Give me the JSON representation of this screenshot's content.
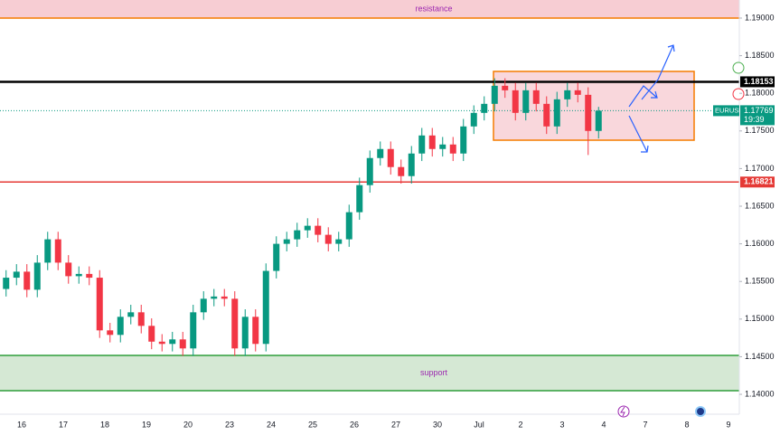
{
  "chart_data": {
    "type": "candlestick",
    "symbol": "EURUSD",
    "up_color": "#089981",
    "down_color": "#f23645",
    "ylim": [
      1.13736,
      1.1924
    ],
    "yticks": [
      {
        "value": 1.14,
        "label": "1.14000"
      },
      {
        "value": 1.145,
        "label": "1.14500"
      },
      {
        "value": 1.15,
        "label": "1.15000"
      },
      {
        "value": 1.155,
        "label": "1.15500"
      },
      {
        "value": 1.16,
        "label": "1.16000"
      },
      {
        "value": 1.165,
        "label": "1.16500"
      },
      {
        "value": 1.17,
        "label": "1.17000"
      },
      {
        "value": 1.175,
        "label": "1.17500"
      },
      {
        "value": 1.18,
        "label": "1.18000"
      },
      {
        "value": 1.185,
        "label": "1.18500"
      },
      {
        "value": 1.19,
        "label": "1.19000"
      }
    ],
    "days": [
      "16",
      "17",
      "18",
      "19",
      "20",
      "23",
      "24",
      "25",
      "26",
      "27",
      "30",
      "Jul",
      "2",
      "3",
      "4",
      "7",
      "8",
      "9"
    ],
    "candles": {
      "open": [
        1.154,
        1.1555,
        1.1563,
        1.1539,
        1.1575,
        1.1606,
        1.1575,
        1.1557,
        1.156,
        1.1555,
        1.1485,
        1.1479,
        1.1503,
        1.1509,
        1.1491,
        1.147,
        1.1467,
        1.1473,
        1.1461,
        1.1509,
        1.1527,
        1.153,
        1.1527,
        1.1461,
        1.1503,
        1.1467,
        1.1564,
        1.16,
        1.1606,
        1.1618,
        1.1624,
        1.1612,
        1.16,
        1.1606,
        1.1642,
        1.1678,
        1.1714,
        1.1726,
        1.1702,
        1.169,
        1.172,
        1.1744,
        1.1726,
        1.1732,
        1.172,
        1.1756,
        1.1774,
        1.1786,
        1.181,
        1.1804,
        1.1774,
        1.1804,
        1.1786,
        1.1756,
        1.1792,
        1.1804,
        1.1798,
        1.175
      ],
      "high": [
        1.1565,
        1.1573,
        1.1573,
        1.1585,
        1.1616,
        1.1616,
        1.1585,
        1.157,
        1.157,
        1.1565,
        1.1495,
        1.1513,
        1.1519,
        1.1519,
        1.1501,
        1.148,
        1.1483,
        1.1483,
        1.1519,
        1.1537,
        1.154,
        1.154,
        1.1537,
        1.1513,
        1.1513,
        1.1574,
        1.161,
        1.1616,
        1.1628,
        1.1634,
        1.1634,
        1.1622,
        1.1616,
        1.1652,
        1.1688,
        1.1724,
        1.1736,
        1.1736,
        1.1712,
        1.173,
        1.1754,
        1.1754,
        1.1742,
        1.1742,
        1.1766,
        1.1784,
        1.1796,
        1.182,
        1.182,
        1.1814,
        1.1814,
        1.1814,
        1.1796,
        1.1802,
        1.1814,
        1.1814,
        1.1808,
        1.1782
      ],
      "low": [
        1.153,
        1.1545,
        1.1529,
        1.1529,
        1.1565,
        1.1565,
        1.1547,
        1.1547,
        1.1545,
        1.1475,
        1.1469,
        1.1469,
        1.1493,
        1.1481,
        1.146,
        1.1457,
        1.1457,
        1.1451,
        1.1451,
        1.1499,
        1.1517,
        1.1517,
        1.1451,
        1.1451,
        1.1457,
        1.1457,
        1.1554,
        1.159,
        1.1596,
        1.1608,
        1.1602,
        1.159,
        1.159,
        1.1596,
        1.1632,
        1.1668,
        1.1704,
        1.1692,
        1.168,
        1.168,
        1.171,
        1.1716,
        1.1716,
        1.171,
        1.171,
        1.1746,
        1.1764,
        1.1776,
        1.1794,
        1.1764,
        1.1764,
        1.1776,
        1.1746,
        1.1746,
        1.1782,
        1.1788,
        1.1718,
        1.174
      ],
      "close": [
        1.1555,
        1.1563,
        1.1539,
        1.1575,
        1.1606,
        1.1575,
        1.1557,
        1.156,
        1.1555,
        1.1485,
        1.1479,
        1.1503,
        1.1509,
        1.1491,
        1.147,
        1.1467,
        1.1473,
        1.1461,
        1.1509,
        1.1527,
        1.153,
        1.1527,
        1.1461,
        1.1503,
        1.1467,
        1.1564,
        1.16,
        1.1606,
        1.1618,
        1.1624,
        1.1612,
        1.16,
        1.1606,
        1.1642,
        1.1678,
        1.1714,
        1.1726,
        1.1702,
        1.169,
        1.172,
        1.1744,
        1.1726,
        1.1732,
        1.172,
        1.1756,
        1.1774,
        1.1786,
        1.181,
        1.1804,
        1.1774,
        1.1804,
        1.1786,
        1.1756,
        1.1792,
        1.1804,
        1.1798,
        1.175,
        1.17769
      ]
    },
    "zones": [
      {
        "name": "resistance",
        "low": 1.19,
        "high": 1.1924,
        "color": "#f7cdd3",
        "border": "#f57c00"
      },
      {
        "name": "support",
        "low": 1.14048,
        "high": 1.14517,
        "color": "#d5e8d4",
        "border": "#2e9e3a"
      }
    ],
    "levels": [
      {
        "value": 1.18153,
        "color": "#000000"
      },
      {
        "value": 1.16821,
        "color": "#e53935"
      }
    ],
    "box": {
      "high": 1.18291,
      "low": 1.17377,
      "color": "#f7cdd3",
      "border": "#f57c00"
    },
    "last": {
      "value": 1.17769,
      "countdown": "19:39",
      "color": "#089981"
    }
  }
}
